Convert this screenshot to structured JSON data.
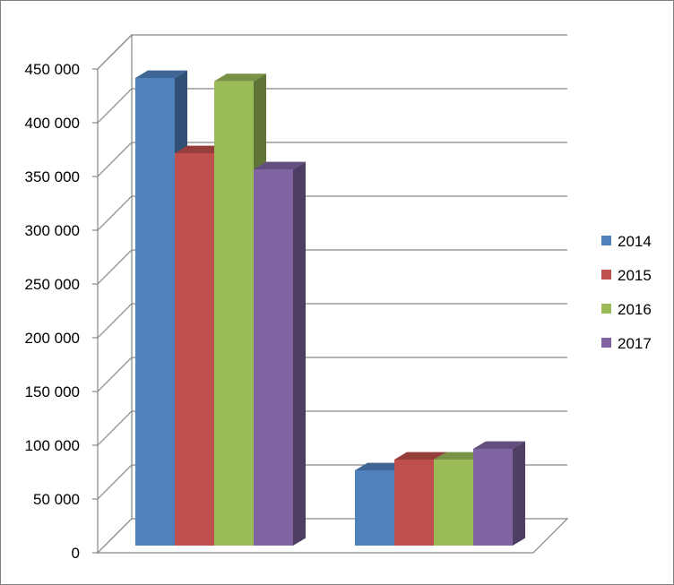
{
  "chart_data": {
    "type": "bar",
    "style": "3d-clustered-column",
    "categories": [
      "",
      ""
    ],
    "series": [
      {
        "name": "2014",
        "color": "#4f81bd",
        "values": [
          435000,
          70000
        ]
      },
      {
        "name": "2015",
        "color": "#c0504d",
        "values": [
          365000,
          80000
        ]
      },
      {
        "name": "2016",
        "color": "#9bbb59",
        "values": [
          432000,
          80000
        ]
      },
      {
        "name": "2017",
        "color": "#8064a2",
        "values": [
          350000,
          90000
        ]
      }
    ],
    "ylim": [
      0,
      450000
    ],
    "yticks": [
      "0",
      "50 000",
      "100 000",
      "150 000",
      "200 000",
      "250 000",
      "300 000",
      "350 000",
      "400 000",
      "450 000"
    ],
    "grid": true,
    "legend": "right"
  }
}
